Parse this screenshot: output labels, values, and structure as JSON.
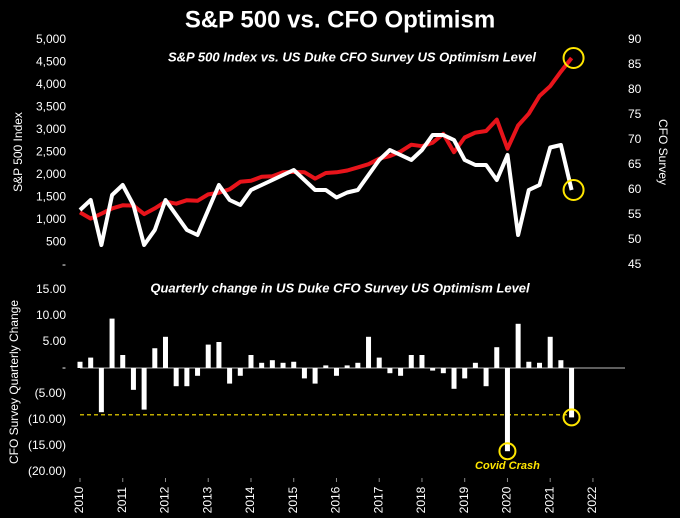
{
  "title": "S&P 500 vs. CFO Optimism",
  "chart_data": [
    {
      "type": "line",
      "subtitle": "S&P 500 Index vs. US Duke CFO Survey US Optimism Level",
      "ylabel": "S&P 500 Index",
      "y2label": "CFO Survey",
      "xlim": [
        2010,
        2022.75
      ],
      "x": [
        2010,
        2010.25,
        2010.5,
        2010.75,
        2011,
        2011.25,
        2011.5,
        2011.75,
        2012,
        2012.25,
        2012.5,
        2012.75,
        2013,
        2013.25,
        2013.5,
        2013.75,
        2014,
        2014.25,
        2014.5,
        2014.75,
        2015,
        2015.25,
        2015.5,
        2015.75,
        2016,
        2016.25,
        2016.5,
        2016.75,
        2017,
        2017.25,
        2017.5,
        2017.75,
        2018,
        2018.25,
        2018.5,
        2018.75,
        2019,
        2019.25,
        2019.5,
        2019.75,
        2020,
        2020.25,
        2020.5,
        2020.75,
        2021,
        2021.25,
        2021.5
      ],
      "ylim": [
        0,
        5000
      ],
      "yticks": [
        {
          "value": 0,
          "label": "-"
        },
        500,
        {
          "value": 1000,
          "label": "1,000"
        },
        {
          "value": 1500,
          "label": "1,500"
        },
        {
          "value": 2000,
          "label": "2,000"
        },
        {
          "value": 2500,
          "label": "2,500"
        },
        {
          "value": 3000,
          "label": "3,000"
        },
        {
          "value": 3500,
          "label": "3,500"
        },
        {
          "value": 4000,
          "label": "4,000"
        },
        {
          "value": 4500,
          "label": "4,500"
        },
        {
          "value": 5000,
          "label": "5,000"
        }
      ],
      "y2lim": [
        45,
        90
      ],
      "y2ticks": [
        45,
        50,
        55,
        60,
        65,
        70,
        75,
        80,
        85,
        90
      ],
      "series": [
        {
          "color": "#e8141b",
          "values": [
            1169,
            1031,
            1141,
            1258,
            1326,
            1321,
            1131,
            1258,
            1408,
            1362,
            1441,
            1426,
            1569,
            1606,
            1682,
            1848,
            1872,
            1960,
            1972,
            2059,
            2068,
            2063,
            1920,
            2044,
            2060,
            2099,
            2168,
            2239,
            2363,
            2423,
            2519,
            2674,
            2641,
            2718,
            2914,
            2507,
            2834,
            2942,
            2977,
            3231,
            2585,
            3100,
            3363,
            3756,
            3973,
            4297,
            4600
          ]
        },
        {
          "color": "#ffffff",
          "axis": "y2",
          "values": [
            56,
            58,
            49,
            59,
            61,
            57,
            49,
            52,
            58,
            55,
            52,
            51,
            56,
            61,
            58,
            57,
            60,
            61,
            62,
            63,
            64,
            62,
            60,
            60,
            58.5,
            59.5,
            60,
            63,
            66,
            68,
            67,
            66,
            68,
            71,
            71,
            70,
            66,
            65,
            65,
            62,
            67,
            51,
            60,
            61,
            68.5,
            69,
            60
          ]
        }
      ]
    },
    {
      "type": "bar",
      "subtitle": "Quarterly change in US Duke CFO Survey US Optimism Level",
      "ylabel": "CFO Survey Quarterly Change",
      "annotation": "Covid Crash",
      "reference_line": -9,
      "reference_color": "#ffe600",
      "color": "#ffffff",
      "xlim": [
        2010,
        2022.75
      ],
      "xticks": [
        2010,
        2011,
        2012,
        2013,
        2014,
        2015,
        2016,
        2017,
        2018,
        2019,
        2020,
        2021,
        2022
      ],
      "x": [
        2010,
        2010.25,
        2010.5,
        2010.75,
        2011,
        2011.25,
        2011.5,
        2011.75,
        2012,
        2012.25,
        2012.5,
        2012.75,
        2013,
        2013.25,
        2013.5,
        2013.75,
        2014,
        2014.25,
        2014.5,
        2014.75,
        2015,
        2015.25,
        2015.5,
        2015.75,
        2016,
        2016.25,
        2016.5,
        2016.75,
        2017,
        2017.25,
        2017.5,
        2017.75,
        2018,
        2018.25,
        2018.5,
        2018.75,
        2019,
        2019.25,
        2019.5,
        2019.75,
        2020,
        2020.25,
        2020.5,
        2020.75,
        2021,
        2021.25,
        2021.5
      ],
      "values": [
        1.2,
        2,
        -8.5,
        9.5,
        2.5,
        -4.2,
        -8,
        3.8,
        6,
        -3.5,
        -3.5,
        -1.5,
        4.5,
        5,
        -3,
        -1.5,
        2.5,
        1,
        1.5,
        1,
        1.2,
        -2,
        -3,
        0.5,
        -1.5,
        0.5,
        1,
        6,
        2,
        -1,
        -1.5,
        2.5,
        2.5,
        -0.5,
        -1,
        -4,
        -2,
        1,
        -3.5,
        4,
        -16,
        8.5,
        1.2,
        1,
        6,
        1.5,
        -9.5
      ],
      "ylim": [
        -20,
        15
      ],
      "yticks": [
        {
          "value": -20,
          "label": "(20.00)"
        },
        {
          "value": -15,
          "label": "(15.00)"
        },
        {
          "value": -10,
          "label": "(10.00)"
        },
        {
          "value": -5,
          "label": "(5.00)"
        },
        {
          "value": 0,
          "label": "-"
        },
        {
          "value": 5,
          "label": "5.00"
        },
        {
          "value": 10,
          "label": "10.00"
        },
        {
          "value": 15,
          "label": "15.00"
        }
      ]
    }
  ]
}
